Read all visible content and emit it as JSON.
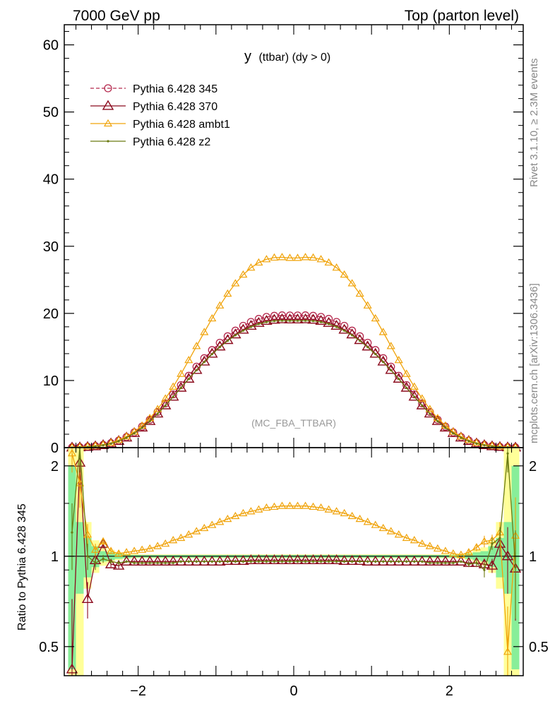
{
  "header": {
    "left": "7000 GeV pp",
    "right": "Top (parton level)"
  },
  "plot_title_main": "y",
  "plot_title_sub": "(ttbar) (dy > 0)",
  "watermark": "(MC_FBA_TTBAR)",
  "side_labels": {
    "rivet": "Rivet 3.1.10, ≥ 2.3M events",
    "mcplots": "mcplots.cern.ch [arXiv:1306.3436]"
  },
  "colors": {
    "p345": "#b5294e",
    "p370": "#8b0a1d",
    "ambt1": "#f0a30a",
    "z2": "#6b7a12",
    "band_yellow": "#ffff99",
    "band_green": "#88ee99"
  },
  "chart_data": [
    {
      "type": "line",
      "panel": "main",
      "xlim": [
        -2.95,
        2.95
      ],
      "ylim": [
        0,
        63
      ],
      "yticks": [
        0,
        10,
        20,
        30,
        40,
        50,
        60
      ],
      "ytick_labels": [
        "0",
        "10",
        "20",
        "30",
        "40",
        "50",
        "60"
      ],
      "legend_position": "top-left",
      "x": [
        -2.85,
        -2.75,
        -2.65,
        -2.55,
        -2.45,
        -2.35,
        -2.25,
        -2.15,
        -2.05,
        -1.95,
        -1.85,
        -1.75,
        -1.65,
        -1.55,
        -1.45,
        -1.35,
        -1.25,
        -1.15,
        -1.05,
        -0.95,
        -0.85,
        -0.75,
        -0.65,
        -0.55,
        -0.45,
        -0.35,
        -0.25,
        -0.15,
        -0.05,
        0.05,
        0.15,
        0.25,
        0.35,
        0.45,
        0.55,
        0.65,
        0.75,
        0.85,
        0.95,
        1.05,
        1.15,
        1.25,
        1.35,
        1.45,
        1.55,
        1.65,
        1.75,
        1.85,
        1.95,
        2.05,
        2.15,
        2.25,
        2.35,
        2.45,
        2.55,
        2.65,
        2.75,
        2.85
      ],
      "series": [
        {
          "name": "Pythia 6.428 345",
          "color_key": "p345",
          "marker": "circle",
          "dashed": true,
          "values": [
            0.03,
            0.06,
            0.12,
            0.23,
            0.4,
            0.66,
            1.05,
            1.58,
            2.27,
            3.13,
            4.15,
            5.31,
            6.58,
            7.93,
            9.31,
            10.7,
            12.05,
            13.33,
            14.53,
            15.62,
            16.59,
            17.43,
            18.14,
            18.72,
            19.17,
            19.47,
            19.64,
            19.7,
            19.68,
            19.68,
            19.7,
            19.64,
            19.47,
            19.17,
            18.72,
            18.14,
            17.43,
            16.59,
            15.62,
            14.53,
            13.33,
            12.05,
            10.7,
            9.31,
            7.93,
            6.58,
            5.31,
            4.15,
            3.13,
            2.27,
            1.58,
            1.05,
            0.66,
            0.4,
            0.23,
            0.12,
            0.06,
            0.03
          ]
        },
        {
          "name": "Pythia 6.428 370",
          "color_key": "p370",
          "marker": "triangle",
          "dashed": false,
          "values": [
            0.02,
            0.05,
            0.11,
            0.21,
            0.38,
            0.63,
            1.0,
            1.51,
            2.18,
            3.0,
            3.97,
            5.08,
            6.3,
            7.6,
            8.93,
            10.27,
            11.58,
            12.83,
            14.0,
            15.07,
            16.03,
            16.87,
            17.57,
            18.15,
            18.59,
            18.89,
            19.06,
            19.12,
            19.1,
            19.1,
            19.12,
            19.06,
            18.89,
            18.59,
            18.15,
            17.57,
            16.87,
            16.03,
            15.07,
            14.0,
            12.83,
            11.58,
            10.27,
            8.93,
            7.6,
            6.3,
            5.08,
            3.97,
            3.0,
            2.18,
            1.51,
            1.0,
            0.63,
            0.38,
            0.21,
            0.11,
            0.05,
            0.02
          ]
        },
        {
          "name": "Pythia 6.428 ambt1",
          "color_key": "ambt1",
          "marker": "triangle-small",
          "dashed": false,
          "values": [
            0.05,
            0.1,
            0.17,
            0.27,
            0.44,
            0.72,
            1.12,
            1.66,
            2.37,
            3.27,
            4.38,
            5.73,
            7.3,
            9.06,
            10.98,
            13.02,
            15.11,
            17.2,
            19.24,
            21.16,
            22.92,
            24.46,
            25.76,
            26.8,
            27.56,
            28.05,
            28.3,
            28.36,
            28.25,
            28.25,
            28.36,
            28.3,
            28.05,
            27.56,
            26.8,
            25.76,
            24.46,
            22.92,
            21.16,
            19.24,
            17.2,
            15.11,
            13.02,
            10.98,
            9.06,
            7.3,
            5.73,
            4.38,
            3.27,
            2.37,
            1.66,
            1.12,
            0.72,
            0.44,
            0.27,
            0.17,
            0.1,
            0.05
          ]
        },
        {
          "name": "Pythia 6.428 z2",
          "color_key": "z2",
          "marker": "dot",
          "dashed": false,
          "values": [
            0.02,
            0.05,
            0.1,
            0.2,
            0.36,
            0.61,
            0.98,
            1.48,
            2.13,
            2.95,
            3.93,
            5.04,
            6.27,
            7.57,
            8.9,
            10.23,
            11.53,
            12.76,
            13.92,
            14.98,
            15.92,
            16.74,
            17.43,
            17.99,
            18.42,
            18.71,
            18.87,
            18.92,
            18.9,
            18.9,
            18.92,
            18.87,
            18.71,
            18.42,
            17.99,
            17.43,
            16.74,
            15.92,
            14.98,
            13.92,
            12.76,
            11.53,
            10.23,
            8.9,
            7.57,
            6.27,
            5.04,
            3.93,
            2.95,
            2.13,
            1.48,
            0.98,
            0.61,
            0.36,
            0.2,
            0.1,
            0.05,
            0.02
          ]
        }
      ]
    },
    {
      "type": "line",
      "panel": "ratio",
      "ylabel": "Ratio to Pythia 6.428 345",
      "xlim": [
        -2.95,
        2.95
      ],
      "ylim": [
        0.4,
        2.3
      ],
      "log_y": true,
      "yticks": [
        0.5,
        1,
        2
      ],
      "ytick_labels": [
        "0.5",
        "1",
        "2"
      ],
      "xticks": [
        -2,
        0,
        2
      ],
      "xtick_labels": [
        "−2",
        "0",
        "2"
      ],
      "x": [
        -2.85,
        -2.75,
        -2.65,
        -2.55,
        -2.45,
        -2.35,
        -2.25,
        -2.15,
        -2.05,
        -1.95,
        -1.85,
        -1.75,
        -1.65,
        -1.55,
        -1.45,
        -1.35,
        -1.25,
        -1.15,
        -1.05,
        -0.95,
        -0.85,
        -0.75,
        -0.65,
        -0.55,
        -0.45,
        -0.35,
        -0.25,
        -0.15,
        -0.05,
        0.05,
        0.15,
        0.25,
        0.35,
        0.45,
        0.55,
        0.65,
        0.75,
        0.85,
        0.95,
        1.05,
        1.15,
        1.25,
        1.35,
        1.45,
        1.55,
        1.65,
        1.75,
        1.85,
        1.95,
        2.05,
        2.15,
        2.25,
        2.35,
        2.45,
        2.55,
        2.65,
        2.75,
        2.85
      ],
      "band": {
        "green_low": [
          0.42,
          0.75,
          0.85,
          0.92,
          0.96,
          0.97,
          0.98,
          0.985,
          0.99,
          0.99,
          0.99,
          0.99,
          0.99,
          0.99,
          0.99,
          0.99,
          0.99,
          0.99,
          0.99,
          0.99,
          0.99,
          0.99,
          0.99,
          0.99,
          0.99,
          0.99,
          0.99,
          0.99,
          0.99,
          0.99,
          0.99,
          0.99,
          0.99,
          0.99,
          0.99,
          0.99,
          0.99,
          0.99,
          0.99,
          0.99,
          0.99,
          0.99,
          0.99,
          0.99,
          0.99,
          0.99,
          0.99,
          0.99,
          0.99,
          0.99,
          0.99,
          0.98,
          0.97,
          0.96,
          0.92,
          0.85,
          0.75,
          0.42
        ],
        "green_high": [
          2.0,
          1.3,
          1.15,
          1.08,
          1.04,
          1.03,
          1.02,
          1.015,
          1.01,
          1.01,
          1.01,
          1.01,
          1.01,
          1.01,
          1.01,
          1.01,
          1.01,
          1.01,
          1.01,
          1.01,
          1.01,
          1.01,
          1.01,
          1.01,
          1.01,
          1.01,
          1.01,
          1.01,
          1.01,
          1.01,
          1.01,
          1.01,
          1.01,
          1.01,
          1.01,
          1.01,
          1.01,
          1.01,
          1.01,
          1.01,
          1.01,
          1.01,
          1.01,
          1.01,
          1.01,
          1.01,
          1.01,
          1.01,
          1.01,
          1.01,
          1.01,
          1.02,
          1.03,
          1.04,
          1.08,
          1.15,
          1.3,
          2.0
        ],
        "yellow_low": [
          0.4,
          0.4,
          0.78,
          0.88,
          0.93,
          0.95,
          0.97,
          0.98,
          0.985,
          0.985,
          0.985,
          0.985,
          0.985,
          0.985,
          0.985,
          0.985,
          0.985,
          0.985,
          0.985,
          0.985,
          0.985,
          0.985,
          0.985,
          0.985,
          0.985,
          0.985,
          0.985,
          0.985,
          0.985,
          0.985,
          0.985,
          0.985,
          0.985,
          0.985,
          0.985,
          0.985,
          0.985,
          0.985,
          0.985,
          0.985,
          0.985,
          0.985,
          0.985,
          0.985,
          0.985,
          0.985,
          0.985,
          0.985,
          0.985,
          0.985,
          0.98,
          0.97,
          0.95,
          0.93,
          0.88,
          0.78,
          0.4,
          0.4
        ],
        "yellow_high": [
          2.3,
          2.3,
          1.3,
          1.13,
          1.07,
          1.05,
          1.03,
          1.02,
          1.015,
          1.015,
          1.015,
          1.015,
          1.015,
          1.015,
          1.015,
          1.015,
          1.015,
          1.015,
          1.015,
          1.015,
          1.015,
          1.015,
          1.015,
          1.015,
          1.015,
          1.015,
          1.015,
          1.015,
          1.015,
          1.015,
          1.015,
          1.015,
          1.015,
          1.015,
          1.015,
          1.015,
          1.015,
          1.015,
          1.015,
          1.015,
          1.015,
          1.015,
          1.015,
          1.015,
          1.015,
          1.015,
          1.015,
          1.015,
          1.015,
          1.015,
          1.02,
          1.03,
          1.05,
          1.07,
          1.13,
          1.3,
          2.3,
          2.3
        ]
      },
      "series": [
        {
          "name": "Pythia 6.428 370",
          "color_key": "p370",
          "marker": "triangle",
          "values": [
            0.42,
            2.05,
            0.72,
            0.97,
            1.1,
            0.94,
            0.93,
            0.96,
            0.96,
            0.96,
            0.96,
            0.96,
            0.96,
            0.96,
            0.96,
            0.96,
            0.96,
            0.96,
            0.96,
            0.96,
            0.965,
            0.965,
            0.965,
            0.97,
            0.97,
            0.97,
            0.97,
            0.97,
            0.97,
            0.97,
            0.97,
            0.97,
            0.97,
            0.97,
            0.97,
            0.965,
            0.965,
            0.965,
            0.96,
            0.96,
            0.96,
            0.96,
            0.96,
            0.96,
            0.96,
            0.96,
            0.96,
            0.96,
            0.96,
            0.96,
            0.96,
            0.95,
            0.95,
            0.94,
            0.93,
            1.1,
            1.0,
            0.91
          ],
          "errors": [
            0.3,
            0.4,
            0.1,
            0.05,
            0.04,
            0.02,
            0.02,
            0.01,
            0.01,
            0.01,
            0.01,
            0.01,
            0.01,
            0.01,
            0.01,
            0.01,
            0.01,
            0.01,
            0.01,
            0.01,
            0.01,
            0.01,
            0.01,
            0.01,
            0.01,
            0.01,
            0.01,
            0.01,
            0.01,
            0.01,
            0.01,
            0.01,
            0.01,
            0.01,
            0.01,
            0.01,
            0.01,
            0.01,
            0.01,
            0.01,
            0.01,
            0.01,
            0.01,
            0.01,
            0.01,
            0.01,
            0.01,
            0.01,
            0.01,
            0.01,
            0.01,
            0.02,
            0.02,
            0.04,
            0.05,
            0.1,
            0.25,
            0.3
          ]
        },
        {
          "name": "Pythia 6.428 ambt1",
          "color_key": "ambt1",
          "marker": "triangle-small",
          "values": [
            2.2,
            1.75,
            1.18,
            1.05,
            1.12,
            1.04,
            1.02,
            1.03,
            1.04,
            1.05,
            1.06,
            1.08,
            1.1,
            1.13,
            1.15,
            1.18,
            1.21,
            1.24,
            1.27,
            1.3,
            1.33,
            1.36,
            1.39,
            1.41,
            1.43,
            1.45,
            1.46,
            1.47,
            1.47,
            1.47,
            1.47,
            1.46,
            1.45,
            1.43,
            1.41,
            1.39,
            1.36,
            1.33,
            1.3,
            1.27,
            1.24,
            1.21,
            1.18,
            1.15,
            1.13,
            1.1,
            1.08,
            1.06,
            1.04,
            1.02,
            1.01,
            1.03,
            1.07,
            1.12,
            1.13,
            1.2,
            0.48,
            1.17
          ],
          "errors": [
            0.3,
            0.3,
            0.1,
            0.05,
            0.03,
            0.02,
            0.02,
            0.01,
            0.01,
            0.01,
            0.01,
            0.01,
            0.01,
            0.01,
            0.01,
            0.01,
            0.01,
            0.01,
            0.01,
            0.01,
            0.01,
            0.01,
            0.01,
            0.01,
            0.01,
            0.01,
            0.01,
            0.01,
            0.01,
            0.01,
            0.01,
            0.01,
            0.01,
            0.01,
            0.01,
            0.01,
            0.01,
            0.01,
            0.01,
            0.01,
            0.01,
            0.01,
            0.01,
            0.01,
            0.01,
            0.01,
            0.01,
            0.01,
            0.01,
            0.01,
            0.01,
            0.02,
            0.03,
            0.05,
            0.05,
            0.1,
            0.2,
            0.4
          ]
        },
        {
          "name": "Pythia 6.428 z2",
          "color_key": "z2",
          "marker": "dot",
          "values": [
            1.2,
            2.3,
            1.0,
            0.95,
            0.98,
            0.96,
            0.95,
            0.96,
            0.95,
            0.95,
            0.95,
            0.95,
            0.95,
            0.95,
            0.96,
            0.96,
            0.96,
            0.96,
            0.96,
            0.96,
            0.96,
            0.96,
            0.96,
            0.96,
            0.96,
            0.96,
            0.96,
            0.96,
            0.96,
            0.96,
            0.96,
            0.96,
            0.96,
            0.96,
            0.96,
            0.96,
            0.96,
            0.96,
            0.96,
            0.96,
            0.96,
            0.96,
            0.96,
            0.96,
            0.96,
            0.96,
            0.95,
            0.95,
            0.95,
            0.95,
            0.96,
            0.94,
            0.95,
            0.9,
            1.1,
            1.15,
            2.2,
            0.92
          ],
          "errors": [
            0.3,
            0.4,
            0.1,
            0.05,
            0.03,
            0.02,
            0.02,
            0.01,
            0.01,
            0.01,
            0.01,
            0.01,
            0.01,
            0.01,
            0.01,
            0.01,
            0.01,
            0.01,
            0.01,
            0.01,
            0.01,
            0.01,
            0.01,
            0.01,
            0.01,
            0.01,
            0.01,
            0.01,
            0.01,
            0.01,
            0.01,
            0.01,
            0.01,
            0.01,
            0.01,
            0.01,
            0.01,
            0.01,
            0.01,
            0.01,
            0.01,
            0.01,
            0.01,
            0.01,
            0.01,
            0.01,
            0.01,
            0.01,
            0.01,
            0.01,
            0.01,
            0.02,
            0.03,
            0.05,
            0.05,
            0.1,
            0.3,
            0.3
          ]
        }
      ]
    }
  ]
}
